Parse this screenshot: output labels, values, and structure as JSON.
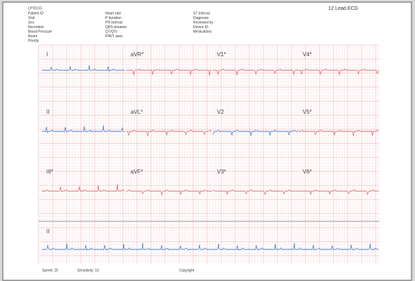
{
  "header": {
    "code": "LPTECG",
    "title": "12 Lead ECG",
    "fields_1": [
      "Patient ID",
      "Visit",
      "Sex",
      "Recorded",
      "Blood Pressure",
      "Room",
      "Priority"
    ],
    "fields_2": [
      "Heart rate",
      "P duration",
      "PR interval",
      "QRS duration",
      "QT/QTc",
      "P/R/T axes"
    ],
    "fields_3": [
      "ST interval",
      "Diagnosis",
      "Reviewed by",
      "Device ID",
      "Medications"
    ]
  },
  "leads": {
    "rows": [
      [
        "I",
        "aVR*",
        "V1*",
        "V4*"
      ],
      [
        "II",
        "aVL*",
        "V2",
        "V5*"
      ],
      [
        "III*",
        "aVF*",
        "V3*",
        "V6*"
      ]
    ],
    "rhythm": "II"
  },
  "footer": {
    "speed": "Speed: 25",
    "sensitivity": "Sensitivity: 10",
    "copyright": "Copyright"
  }
}
